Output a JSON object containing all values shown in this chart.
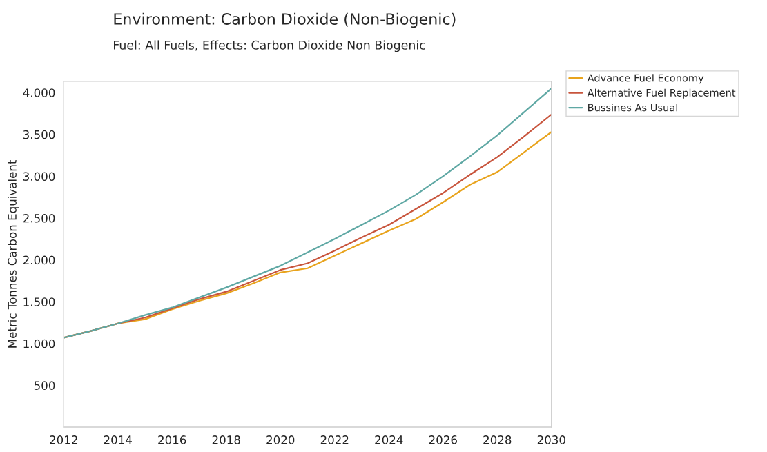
{
  "chart_data": {
    "type": "line",
    "title": "Environment: Carbon Dioxide (Non-Biogenic)",
    "subtitle": "Fuel: All Fuels, Effects: Carbon Dioxide Non Biogenic",
    "ylabel": "Metric Tonnes Carbon Equivalent",
    "x": [
      2012,
      2013,
      2014,
      2015,
      2016,
      2017,
      2018,
      2019,
      2020,
      2021,
      2022,
      2023,
      2024,
      2025,
      2026,
      2027,
      2028,
      2029,
      2030
    ],
    "series": [
      {
        "name": "Advance Fuel Economy",
        "color": "#e8a31c",
        "values": [
          1070,
          1150,
          1240,
          1290,
          1410,
          1510,
          1600,
          1720,
          1850,
          1900,
          2050,
          2200,
          2350,
          2490,
          2690,
          2900,
          3050,
          3290,
          3530
        ]
      },
      {
        "name": "Alternative Fuel Replacement",
        "color": "#c8553d",
        "values": [
          1070,
          1150,
          1240,
          1310,
          1420,
          1530,
          1620,
          1750,
          1880,
          1960,
          2110,
          2270,
          2420,
          2610,
          2800,
          3020,
          3230,
          3480,
          3740
        ]
      },
      {
        "name": "Bussines As Usual",
        "color": "#5fa8a4",
        "values": [
          1070,
          1150,
          1240,
          1340,
          1430,
          1550,
          1670,
          1800,
          1930,
          2090,
          2250,
          2420,
          2590,
          2780,
          3000,
          3240,
          3490,
          3770,
          4050
        ]
      }
    ],
    "xlim": [
      2012,
      2030
    ],
    "xticks": [
      2012,
      2014,
      2016,
      2018,
      2020,
      2022,
      2024,
      2026,
      2028,
      2030
    ],
    "ylim": [
      0,
      4135
    ],
    "yticks": [
      {
        "value": 500,
        "label": "500"
      },
      {
        "value": 1000,
        "label": "1.000"
      },
      {
        "value": 1500,
        "label": "1.500"
      },
      {
        "value": 2000,
        "label": "2.000"
      },
      {
        "value": 2500,
        "label": "2.500"
      },
      {
        "value": 3000,
        "label": "3.000"
      },
      {
        "value": 3500,
        "label": "3.500"
      },
      {
        "value": 4000,
        "label": "4.000"
      }
    ],
    "grid": false,
    "legend": "top right",
    "marker": "none",
    "line_style": "solid"
  }
}
